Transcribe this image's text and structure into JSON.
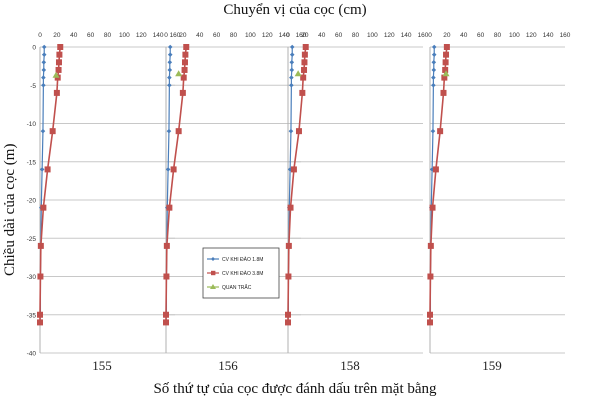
{
  "figure": {
    "title": "Chuyển vị của cọc (cm)",
    "ylabel": "Chiều dài của cọc (m)",
    "xlabel": "Số thứ tự của cọc được đánh dấu trên mặt bằng"
  },
  "chart_data": {
    "type": "line",
    "xlim": [
      0,
      160
    ],
    "ylim": [
      -40,
      0
    ],
    "x_ticks": [
      0,
      20,
      40,
      60,
      80,
      100,
      120,
      140,
      160
    ],
    "y_ticks": [
      0,
      -5,
      -10,
      -15,
      -20,
      -25,
      -30,
      -35,
      -40
    ],
    "grid": true,
    "legend": {
      "placement": "in-panel-1",
      "entries": [
        "CV KHI ĐÀO 1.8M",
        "CV KHI ĐÀO 3.8M",
        "QUAN TRẮC"
      ]
    },
    "series_colors": [
      "#4a7ebb",
      "#c0504d",
      "#9bbb59"
    ],
    "panels": [
      {
        "label": "155",
        "series": [
          {
            "name": "CV KHI ĐÀO 1.8M",
            "x": [
              5,
              5,
              4.5,
              4.5,
              4,
              4,
              3.5,
              2.5,
              1.5,
              1,
              0.5,
              0.5,
              0
            ],
            "y": [
              0,
              -1,
              -2,
              -3,
              -4,
              -5,
              -11,
              -16,
              -21,
              -26,
              -30,
              -35,
              -36
            ]
          },
          {
            "name": "CV KHI ĐÀO 3.8M",
            "x": [
              24,
              23,
              22.5,
              22,
              21,
              20,
              15,
              9,
              4,
              1,
              0.5,
              0,
              0
            ],
            "y": [
              0,
              -1,
              -2,
              -3,
              -4,
              -6,
              -11,
              -16,
              -21,
              -26,
              -30,
              -35,
              -36
            ]
          },
          {
            "name": "QUAN TRẮC",
            "x": [
              19
            ],
            "y": [
              -3.7
            ]
          }
        ]
      },
      {
        "label": "156",
        "series": [
          {
            "name": "CV KHI ĐÀO 1.8M",
            "x": [
              5,
              5,
              4.5,
              4.5,
              4,
              4,
              3.5,
              2.5,
              1.5,
              1,
              0.5,
              0.5,
              0
            ],
            "y": [
              0,
              -1,
              -2,
              -3,
              -4,
              -5,
              -11,
              -16,
              -21,
              -26,
              -30,
              -35,
              -36
            ]
          },
          {
            "name": "CV KHI ĐÀO 3.8M",
            "x": [
              24,
              23,
              22.5,
              22,
              21,
              20,
              15,
              9,
              4,
              1,
              0.5,
              0,
              0
            ],
            "y": [
              0,
              -1,
              -2,
              -3,
              -4,
              -6,
              -11,
              -16,
              -21,
              -26,
              -30,
              -35,
              -36
            ]
          },
          {
            "name": "QUAN TRẮC",
            "x": [
              15
            ],
            "y": [
              -3.5
            ]
          }
        ]
      },
      {
        "label": "158",
        "series": [
          {
            "name": "CV KHI ĐÀO 1.8M",
            "x": [
              5,
              5,
              4.5,
              4.5,
              4,
              4,
              3.5,
              2.5,
              1.5,
              1,
              0.5,
              0.5,
              0
            ],
            "y": [
              0,
              -1,
              -2,
              -3,
              -4,
              -5,
              -11,
              -16,
              -21,
              -26,
              -30,
              -35,
              -36
            ]
          },
          {
            "name": "CV KHI ĐÀO 3.8M",
            "x": [
              21,
              20,
              19.5,
              19,
              18,
              17,
              13,
              7,
              3,
              1,
              0.5,
              0,
              0
            ],
            "y": [
              0,
              -1,
              -2,
              -3,
              -4,
              -6,
              -11,
              -16,
              -21,
              -26,
              -30,
              -35,
              -36
            ]
          },
          {
            "name": "QUAN TRẮC",
            "x": [
              12
            ],
            "y": [
              -3.5
            ]
          }
        ]
      },
      {
        "label": "159",
        "series": [
          {
            "name": "CV KHI ĐÀO 1.8M",
            "x": [
              5,
              5,
              4.5,
              4.5,
              4,
              4,
              3.5,
              2.5,
              1.5,
              1,
              0.5,
              0.5,
              0
            ],
            "y": [
              0,
              -1,
              -2,
              -3,
              -4,
              -5,
              -11,
              -16,
              -21,
              -26,
              -30,
              -35,
              -36
            ]
          },
          {
            "name": "CV KHI ĐÀO 3.8M",
            "x": [
              20,
              19,
              18.5,
              18,
              17,
              16,
              12,
              7,
              3,
              1,
              0.5,
              0,
              0
            ],
            "y": [
              0,
              -1,
              -2,
              -3,
              -4,
              -6,
              -11,
              -16,
              -21,
              -26,
              -30,
              -35,
              -36
            ]
          },
          {
            "name": "QUAN TRẮC",
            "x": [
              19
            ],
            "y": [
              -3.5
            ]
          }
        ]
      }
    ]
  }
}
